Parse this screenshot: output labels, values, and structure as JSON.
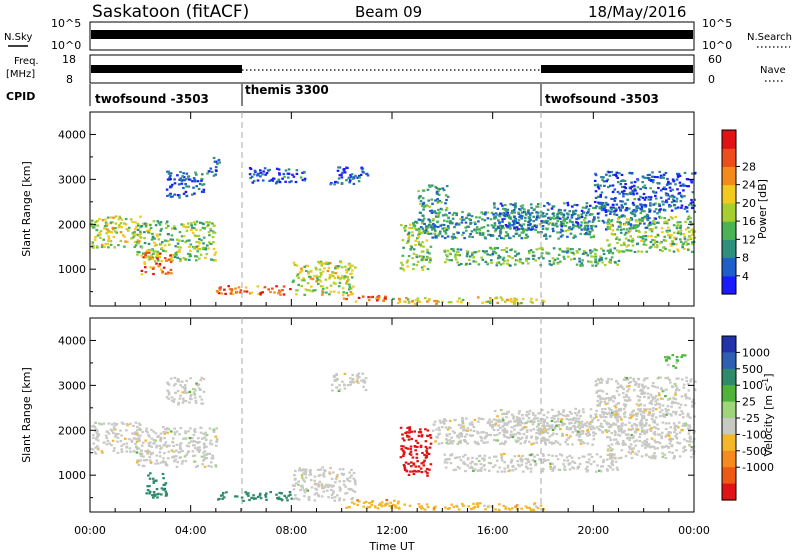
{
  "header": {
    "title": "Saskatoon (fitACF)",
    "beam": "Beam 09",
    "date": "18/May/2016"
  },
  "aux_panels": {
    "nsky": {
      "label": "N.Sky",
      "left_ticks": [
        "10^5",
        "10^0"
      ],
      "right_ticks": [
        "10^5",
        "10^0"
      ],
      "right_label": "N.Search"
    },
    "freq": {
      "label_line1": "Freq.",
      "label_line2": "[MHz]",
      "left_ticks": [
        "18",
        "8"
      ],
      "right_ticks": [
        "60",
        "0"
      ],
      "right_label": "Nave"
    },
    "cpid": {
      "label": "CPID",
      "segments": [
        {
          "name": "twofsound -3503",
          "start": 0,
          "end": 6
        },
        {
          "name": "themis 3300",
          "start": 6,
          "end": 18
        },
        {
          "name": "twofsound -3503",
          "start": 18,
          "end": 24
        }
      ]
    }
  },
  "chart_data": [
    {
      "type": "heatmap",
      "name": "power",
      "ylabel": "Slant Range [km]",
      "ylim": [
        180,
        4500
      ],
      "yticks": [
        "1000",
        "2000",
        "3000",
        "4000"
      ],
      "ytick_values": [
        1000,
        2000,
        3000,
        4000
      ],
      "colorbar": {
        "label": "Power [dB]",
        "ticks": [
          "4",
          "8",
          "12",
          "16",
          "20",
          "24",
          "28"
        ],
        "colors": [
          "#1a1aff",
          "#1c5fcc",
          "#2f8f7f",
          "#49b356",
          "#a4cf2e",
          "#f2c91e",
          "#f28a1c",
          "#ee4e1b",
          "#e01414"
        ]
      },
      "echo_regions": [
        {
          "t0": 0.0,
          "t1": 2.0,
          "r0": 1500,
          "r1": 2200,
          "value": 18
        },
        {
          "t0": 1.8,
          "t1": 5.0,
          "r0": 1200,
          "r1": 2100,
          "value": 16
        },
        {
          "t0": 2.0,
          "t1": 3.2,
          "r0": 900,
          "r1": 1400,
          "value": 25
        },
        {
          "t0": 3.0,
          "t1": 4.5,
          "r0": 2600,
          "r1": 3200,
          "value": 8
        },
        {
          "t0": 4.6,
          "t1": 5.1,
          "r0": 3100,
          "r1": 3500,
          "value": 10
        },
        {
          "t0": 5.0,
          "t1": 8.0,
          "r0": 450,
          "r1": 650,
          "value": 26
        },
        {
          "t0": 6.3,
          "t1": 7.5,
          "r0": 2900,
          "r1": 3300,
          "value": 6
        },
        {
          "t0": 7.5,
          "t1": 8.5,
          "r0": 2950,
          "r1": 3250,
          "value": 8
        },
        {
          "t0": 8.0,
          "t1": 10.5,
          "r0": 450,
          "r1": 1200,
          "value": 18
        },
        {
          "t0": 9.5,
          "t1": 11.0,
          "r0": 2900,
          "r1": 3300,
          "value": 8
        },
        {
          "t0": 10.0,
          "t1": 12.0,
          "r0": 300,
          "r1": 450,
          "value": 26
        },
        {
          "t0": 12.0,
          "t1": 18.0,
          "r0": 250,
          "r1": 400,
          "value": 20
        },
        {
          "t0": 12.3,
          "t1": 13.5,
          "r0": 1000,
          "r1": 2100,
          "value": 16
        },
        {
          "t0": 13.0,
          "t1": 14.2,
          "r0": 1800,
          "r1": 2900,
          "value": 12
        },
        {
          "t0": 13.5,
          "t1": 20.0,
          "r0": 1700,
          "r1": 2300,
          "value": 12
        },
        {
          "t0": 14.0,
          "t1": 21.0,
          "r0": 1100,
          "r1": 1500,
          "value": 14
        },
        {
          "t0": 16.0,
          "t1": 22.5,
          "r0": 1900,
          "r1": 2500,
          "value": 10
        },
        {
          "t0": 20.5,
          "t1": 24.0,
          "r0": 1400,
          "r1": 2200,
          "value": 16
        },
        {
          "t0": 20.0,
          "t1": 24.0,
          "r0": 2300,
          "r1": 3200,
          "value": 8
        }
      ]
    },
    {
      "type": "heatmap",
      "name": "velocity",
      "ylabel": "Slant Range [km]",
      "ylim": [
        180,
        4500
      ],
      "yticks": [
        "1000",
        "2000",
        "3000",
        "4000"
      ],
      "ytick_values": [
        1000,
        2000,
        3000,
        4000
      ],
      "xlabel": "Time UT",
      "xticks": [
        "00:00",
        "04:00",
        "08:00",
        "12:00",
        "16:00",
        "20:00",
        "00:00"
      ],
      "xtick_hours": [
        0,
        4,
        8,
        12,
        16,
        20,
        24
      ],
      "colorbar": {
        "label": "Velocity [m s^-1]",
        "ticks": [
          "1000",
          "500",
          "100",
          "25",
          "-25",
          "-100",
          "-500",
          "-1000"
        ],
        "colors": [
          "#2233aa",
          "#2f5fb3",
          "#2f8a6a",
          "#4fb33a",
          "#9fd47a",
          "#c8c8c4",
          "#f5b72a",
          "#f58b1c",
          "#ee5a14",
          "#e01414"
        ]
      },
      "echo_regions": [
        {
          "t0": 0.0,
          "t1": 2.0,
          "r0": 1500,
          "r1": 2200,
          "value": 0
        },
        {
          "t0": 1.8,
          "t1": 5.0,
          "r0": 1200,
          "r1": 2100,
          "value": 0
        },
        {
          "t0": 2.2,
          "t1": 3.0,
          "r0": 500,
          "r1": 1100,
          "value": 300
        },
        {
          "t0": 3.0,
          "t1": 4.5,
          "r0": 2600,
          "r1": 3200,
          "value": 0
        },
        {
          "t0": 5.0,
          "t1": 8.0,
          "r0": 450,
          "r1": 650,
          "value": 150
        },
        {
          "t0": 8.0,
          "t1": 10.5,
          "r0": 450,
          "r1": 1200,
          "value": 0
        },
        {
          "t0": 9.5,
          "t1": 11.0,
          "r0": 2900,
          "r1": 3300,
          "value": 0
        },
        {
          "t0": 10.0,
          "t1": 12.5,
          "r0": 280,
          "r1": 480,
          "value": -50
        },
        {
          "t0": 12.0,
          "t1": 18.0,
          "r0": 250,
          "r1": 400,
          "value": -40
        },
        {
          "t0": 12.3,
          "t1": 13.5,
          "r0": 1000,
          "r1": 2100,
          "value": -600
        },
        {
          "t0": 13.5,
          "t1": 20.0,
          "r0": 1700,
          "r1": 2300,
          "value": 0
        },
        {
          "t0": 14.0,
          "t1": 21.0,
          "r0": 1100,
          "r1": 1500,
          "value": 0
        },
        {
          "t0": 16.0,
          "t1": 22.5,
          "r0": 1900,
          "r1": 2500,
          "value": 0
        },
        {
          "t0": 20.5,
          "t1": 24.0,
          "r0": 1400,
          "r1": 2200,
          "value": 0
        },
        {
          "t0": 20.0,
          "t1": 24.0,
          "r0": 2300,
          "r1": 3200,
          "value": 0
        },
        {
          "t0": 22.8,
          "t1": 23.6,
          "r0": 3400,
          "r1": 3700,
          "value": 60
        }
      ]
    }
  ]
}
